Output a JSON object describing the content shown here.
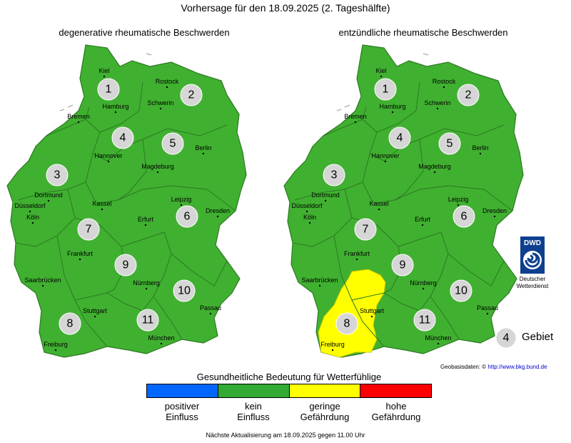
{
  "header": {
    "title": "Vorhersage für den 18.09.2025 (2. Tageshälfte)"
  },
  "maps": [
    {
      "title": "degenerative rheumatische Beschwerden",
      "yellow_regions": []
    },
    {
      "title": "entzündliche rheumatische Beschwerden",
      "yellow_regions": [
        "8"
      ]
    }
  ],
  "cities": [
    "Kiel",
    "Rostock",
    "Hamburg",
    "Schwerin",
    "Bremen",
    "Hannover",
    "Berlin",
    "Magdeburg",
    "Dortmund",
    "Düsseldorf",
    "Köln",
    "Kassel",
    "Leipzig",
    "Dresden",
    "Erfurt",
    "Frankfurt",
    "Saarbrücken",
    "Nürnberg",
    "Stuttgart",
    "Passau",
    "München",
    "Freiburg"
  ],
  "regions": [
    "1",
    "2",
    "3",
    "4",
    "5",
    "6",
    "7",
    "8",
    "9",
    "10",
    "11"
  ],
  "legend": {
    "title": "Gesundheitliche Bedeutung für Wetterfühlige",
    "items": [
      {
        "line1": "positiver",
        "line2": "Einfluss",
        "color": "#0066ff"
      },
      {
        "line1": "kein",
        "line2": "Einfluss",
        "color": "#33aa33"
      },
      {
        "line1": "geringe",
        "line2": "Gefährdung",
        "color": "#ffff00"
      },
      {
        "line1": "hohe",
        "line2": "Gefährdung",
        "color": "#ff0000"
      }
    ]
  },
  "key": {
    "number": "4",
    "label": "Gebiet"
  },
  "dwd": {
    "logo_text": "DWD",
    "line1": "Deutscher",
    "line2": "Wetterdienst"
  },
  "geodata": {
    "label": "Geobasisdaten: ©",
    "url": "http://www.bkg.bund.de"
  },
  "footer": {
    "text": "Nächste Aktualisierung am 18.09.2025 gegen 11.00 Uhr"
  },
  "colors": {
    "map_green": "#40b030",
    "border": "#2b7a22",
    "yellow": "#ffff00",
    "badge": "#d6d6d6"
  }
}
